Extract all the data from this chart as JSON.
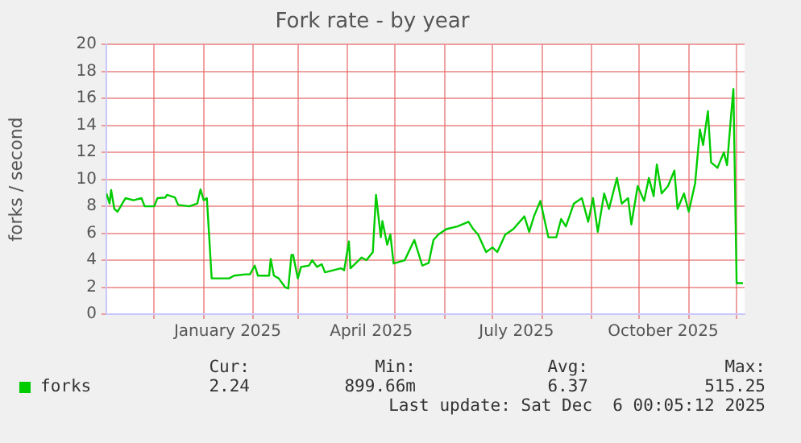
{
  "chart_data": {
    "type": "line",
    "title": "Fork rate - by year",
    "ylabel": "forks / second",
    "xlim": [
      "2024-11-01",
      "2025-12-06"
    ],
    "xticks": [
      {
        "value": "2024-12-01",
        "label": null
      },
      {
        "value": "2025-01-01",
        "label": null
      },
      {
        "value": "2025-01-16",
        "label": "January 2025"
      },
      {
        "value": "2025-02-01",
        "label": null
      },
      {
        "value": "2025-03-01",
        "label": null
      },
      {
        "value": "2025-04-01",
        "label": null
      },
      {
        "value": "2025-04-16",
        "label": "April 2025"
      },
      {
        "value": "2025-05-01",
        "label": null
      },
      {
        "value": "2025-06-01",
        "label": null
      },
      {
        "value": "2025-07-01",
        "label": null
      },
      {
        "value": "2025-07-16",
        "label": "July 2025"
      },
      {
        "value": "2025-08-01",
        "label": null
      },
      {
        "value": "2025-09-01",
        "label": null
      },
      {
        "value": "2025-10-01",
        "label": null
      },
      {
        "value": "2025-10-16",
        "label": "October 2025"
      },
      {
        "value": "2025-11-01",
        "label": null
      },
      {
        "value": "2025-12-01",
        "label": null
      }
    ],
    "ylim": [
      0,
      20
    ],
    "yticks": [
      0,
      2,
      4,
      6,
      8,
      10,
      12,
      14,
      16,
      18,
      20
    ],
    "grid": true,
    "legend": "bottom left",
    "marker": "none",
    "line_style": "solid",
    "series": [
      {
        "name": "forks",
        "color": "#00cc00",
        "x": [
          "2024-11-01",
          "2024-11-03",
          "2024-11-04",
          "2024-11-06",
          "2024-11-08",
          "2024-11-11",
          "2024-11-13",
          "2024-11-18",
          "2024-11-23",
          "2024-11-25",
          "2024-12-01",
          "2024-12-03",
          "2024-12-08",
          "2024-12-09",
          "2024-12-14",
          "2024-12-16",
          "2024-12-23",
          "2024-12-28",
          "2024-12-30",
          "2025-01-01",
          "2025-01-03",
          "2025-01-06",
          "2025-01-17",
          "2025-01-20",
          "2025-01-27",
          "2025-01-30",
          "2025-02-02",
          "2025-02-04",
          "2025-02-11",
          "2025-02-12",
          "2025-02-14",
          "2025-02-17",
          "2025-02-21",
          "2025-02-23",
          "2025-02-25",
          "2025-02-26",
          "2025-03-01",
          "2025-03-03",
          "2025-03-08",
          "2025-03-10",
          "2025-03-13",
          "2025-03-16",
          "2025-03-18",
          "2025-03-28",
          "2025-03-30",
          "2025-04-02",
          "2025-04-03",
          "2025-04-10",
          "2025-04-13",
          "2025-04-17",
          "2025-04-19",
          "2025-04-22",
          "2025-04-23",
          "2025-04-26",
          "2025-04-28",
          "2025-04-30",
          "2025-05-07",
          "2025-05-13",
          "2025-05-18",
          "2025-05-22",
          "2025-05-25",
          "2025-05-28",
          "2025-06-02",
          "2025-06-09",
          "2025-06-16",
          "2025-06-19",
          "2025-06-22",
          "2025-06-27",
          "2025-07-01",
          "2025-07-04",
          "2025-07-09",
          "2025-07-14",
          "2025-07-21",
          "2025-07-24",
          "2025-07-27",
          "2025-07-31",
          "2025-08-05",
          "2025-08-10",
          "2025-08-13",
          "2025-08-16",
          "2025-08-21",
          "2025-08-26",
          "2025-08-30",
          "2025-09-02",
          "2025-09-05",
          "2025-09-09",
          "2025-09-12",
          "2025-09-17",
          "2025-09-20",
          "2025-09-24",
          "2025-09-26",
          "2025-09-30",
          "2025-10-04",
          "2025-10-07",
          "2025-10-10",
          "2025-10-12",
          "2025-10-15",
          "2025-10-19",
          "2025-10-23",
          "2025-10-25",
          "2025-10-29",
          "2025-11-01",
          "2025-11-05",
          "2025-11-08",
          "2025-11-10",
          "2025-11-13",
          "2025-11-15",
          "2025-11-19",
          "2025-11-23",
          "2025-11-25",
          "2025-11-28",
          "2025-11-29",
          "2025-12-01",
          "2025-12-05"
        ],
        "values": [
          8.95,
          8.2,
          9.2,
          7.8,
          7.6,
          8.2,
          8.6,
          8.45,
          8.6,
          8.0,
          8.0,
          8.6,
          8.65,
          8.85,
          8.65,
          8.1,
          8.0,
          8.2,
          9.25,
          8.45,
          8.6,
          2.65,
          2.65,
          2.85,
          2.95,
          2.95,
          3.6,
          2.85,
          2.85,
          4.1,
          2.85,
          2.65,
          2.0,
          1.9,
          4.4,
          4.4,
          2.65,
          3.5,
          3.6,
          4.0,
          3.5,
          3.7,
          3.1,
          3.4,
          3.25,
          5.4,
          3.4,
          4.2,
          4.0,
          4.6,
          8.85,
          5.7,
          6.9,
          5.15,
          5.9,
          3.75,
          4.0,
          5.5,
          3.6,
          3.8,
          5.5,
          5.9,
          6.3,
          6.5,
          6.85,
          6.3,
          5.9,
          4.6,
          4.95,
          4.6,
          5.9,
          6.3,
          7.25,
          6.1,
          7.25,
          8.4,
          5.7,
          5.7,
          7.05,
          6.5,
          8.2,
          8.6,
          6.85,
          8.6,
          6.1,
          8.95,
          7.8,
          10.1,
          8.2,
          8.6,
          6.65,
          9.5,
          8.4,
          10.1,
          8.75,
          11.1,
          8.95,
          9.5,
          10.65,
          7.8,
          8.95,
          7.6,
          9.7,
          13.7,
          12.55,
          15.05,
          11.25,
          10.85,
          12.0,
          11.05,
          15.4,
          16.7,
          2.3,
          2.3
        ]
      }
    ],
    "annotations": [
      "Cur:",
      "Min:",
      "Avg:",
      "Max:",
      "2.24",
      "899.66m",
      "6.37",
      "515.25",
      "Last update: Sat Dec  6 00:05:12 2025"
    ]
  }
}
